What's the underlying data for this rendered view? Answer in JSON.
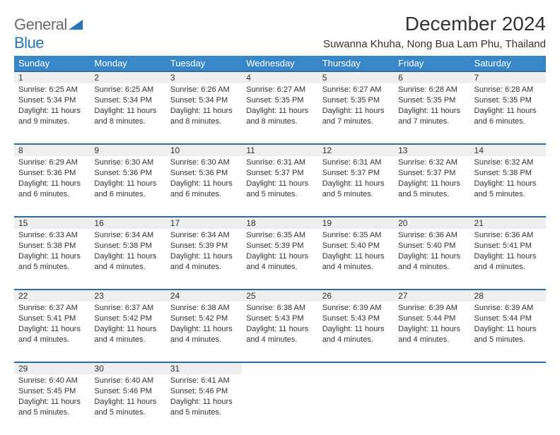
{
  "brand": {
    "word1": "General",
    "word2": "Blue"
  },
  "title": "December 2024",
  "location": "Suwanna Khuha, Nong Bua Lam Phu, Thailand",
  "colors": {
    "header_bg": "#3a87c7",
    "header_border": "#2b6ca3",
    "daynum_bg": "#eceeef",
    "text": "#333333",
    "logo_gray": "#6a6a6a",
    "logo_blue": "#2776b8",
    "page_bg": "#ffffff"
  },
  "weekdays": [
    "Sunday",
    "Monday",
    "Tuesday",
    "Wednesday",
    "Thursday",
    "Friday",
    "Saturday"
  ],
  "days": [
    {
      "n": 1,
      "sr": "6:25 AM",
      "ss": "5:34 PM",
      "dl": "11 hours and 9 minutes."
    },
    {
      "n": 2,
      "sr": "6:25 AM",
      "ss": "5:34 PM",
      "dl": "11 hours and 8 minutes."
    },
    {
      "n": 3,
      "sr": "6:26 AM",
      "ss": "5:34 PM",
      "dl": "11 hours and 8 minutes."
    },
    {
      "n": 4,
      "sr": "6:27 AM",
      "ss": "5:35 PM",
      "dl": "11 hours and 8 minutes."
    },
    {
      "n": 5,
      "sr": "6:27 AM",
      "ss": "5:35 PM",
      "dl": "11 hours and 7 minutes."
    },
    {
      "n": 6,
      "sr": "6:28 AM",
      "ss": "5:35 PM",
      "dl": "11 hours and 7 minutes."
    },
    {
      "n": 7,
      "sr": "6:28 AM",
      "ss": "5:35 PM",
      "dl": "11 hours and 6 minutes."
    },
    {
      "n": 8,
      "sr": "6:29 AM",
      "ss": "5:36 PM",
      "dl": "11 hours and 6 minutes."
    },
    {
      "n": 9,
      "sr": "6:30 AM",
      "ss": "5:36 PM",
      "dl": "11 hours and 6 minutes."
    },
    {
      "n": 10,
      "sr": "6:30 AM",
      "ss": "5:36 PM",
      "dl": "11 hours and 6 minutes."
    },
    {
      "n": 11,
      "sr": "6:31 AM",
      "ss": "5:37 PM",
      "dl": "11 hours and 5 minutes."
    },
    {
      "n": 12,
      "sr": "6:31 AM",
      "ss": "5:37 PM",
      "dl": "11 hours and 5 minutes."
    },
    {
      "n": 13,
      "sr": "6:32 AM",
      "ss": "5:37 PM",
      "dl": "11 hours and 5 minutes."
    },
    {
      "n": 14,
      "sr": "6:32 AM",
      "ss": "5:38 PM",
      "dl": "11 hours and 5 minutes."
    },
    {
      "n": 15,
      "sr": "6:33 AM",
      "ss": "5:38 PM",
      "dl": "11 hours and 5 minutes."
    },
    {
      "n": 16,
      "sr": "6:34 AM",
      "ss": "5:38 PM",
      "dl": "11 hours and 4 minutes."
    },
    {
      "n": 17,
      "sr": "6:34 AM",
      "ss": "5:39 PM",
      "dl": "11 hours and 4 minutes."
    },
    {
      "n": 18,
      "sr": "6:35 AM",
      "ss": "5:39 PM",
      "dl": "11 hours and 4 minutes."
    },
    {
      "n": 19,
      "sr": "6:35 AM",
      "ss": "5:40 PM",
      "dl": "11 hours and 4 minutes."
    },
    {
      "n": 20,
      "sr": "6:36 AM",
      "ss": "5:40 PM",
      "dl": "11 hours and 4 minutes."
    },
    {
      "n": 21,
      "sr": "6:36 AM",
      "ss": "5:41 PM",
      "dl": "11 hours and 4 minutes."
    },
    {
      "n": 22,
      "sr": "6:37 AM",
      "ss": "5:41 PM",
      "dl": "11 hours and 4 minutes."
    },
    {
      "n": 23,
      "sr": "6:37 AM",
      "ss": "5:42 PM",
      "dl": "11 hours and 4 minutes."
    },
    {
      "n": 24,
      "sr": "6:38 AM",
      "ss": "5:42 PM",
      "dl": "11 hours and 4 minutes."
    },
    {
      "n": 25,
      "sr": "6:38 AM",
      "ss": "5:43 PM",
      "dl": "11 hours and 4 minutes."
    },
    {
      "n": 26,
      "sr": "6:39 AM",
      "ss": "5:43 PM",
      "dl": "11 hours and 4 minutes."
    },
    {
      "n": 27,
      "sr": "6:39 AM",
      "ss": "5:44 PM",
      "dl": "11 hours and 4 minutes."
    },
    {
      "n": 28,
      "sr": "6:39 AM",
      "ss": "5:44 PM",
      "dl": "11 hours and 5 minutes."
    },
    {
      "n": 29,
      "sr": "6:40 AM",
      "ss": "5:45 PM",
      "dl": "11 hours and 5 minutes."
    },
    {
      "n": 30,
      "sr": "6:40 AM",
      "ss": "5:46 PM",
      "dl": "11 hours and 5 minutes."
    },
    {
      "n": 31,
      "sr": "6:41 AM",
      "ss": "5:46 PM",
      "dl": "11 hours and 5 minutes."
    }
  ],
  "labels": {
    "sunrise": "Sunrise: ",
    "sunset": "Sunset: ",
    "daylight": "Daylight: "
  },
  "layout": {
    "first_weekday_offset": 0,
    "columns": 7
  }
}
